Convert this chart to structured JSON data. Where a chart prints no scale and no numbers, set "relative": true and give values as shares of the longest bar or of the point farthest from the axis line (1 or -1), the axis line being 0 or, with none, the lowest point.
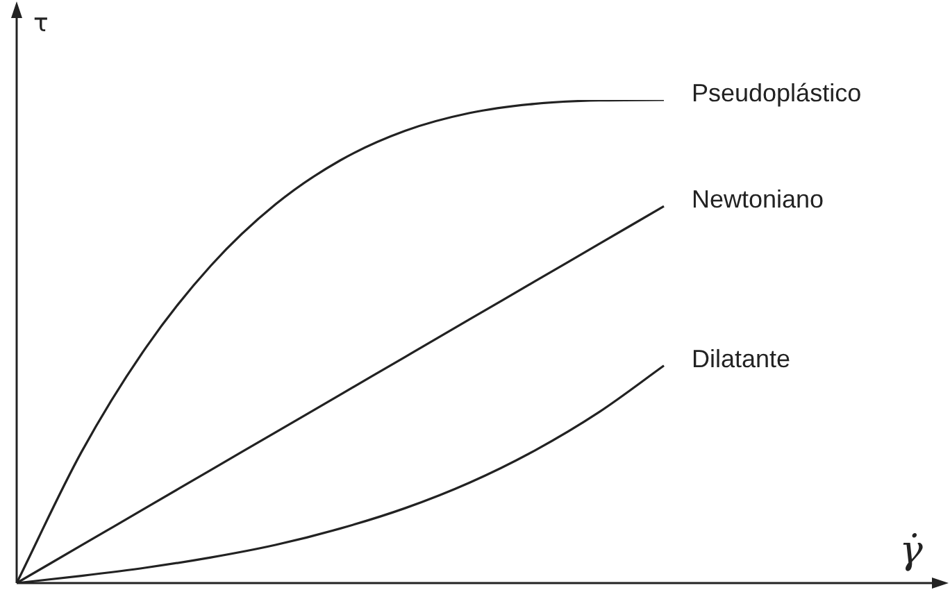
{
  "chart_data": {
    "type": "line",
    "relative": true,
    "ylabel": "τ",
    "annotations": [
      "γ̇"
    ],
    "categories": [
      null,
      null,
      null,
      null,
      null,
      null,
      null,
      null,
      null,
      null,
      null
    ],
    "marker": "none",
    "legend": false,
    "series": [
      {
        "name": "Pseudoplástico",
        "color": "#222222",
        "values": [
          0,
          0.271,
          0.488,
          0.657,
          0.784,
          0.875,
          0.936,
          0.973,
          0.992,
          0.999,
          1.0
        ]
      },
      {
        "name": "Newtoniano",
        "color": "#222222",
        "values": [
          0,
          0.078,
          0.156,
          0.234,
          0.312,
          0.39,
          0.468,
          0.546,
          0.624,
          0.702,
          0.78
        ]
      },
      {
        "name": "Dilatante",
        "color": "#222222",
        "values": [
          0,
          0.015,
          0.032,
          0.053,
          0.079,
          0.113,
          0.155,
          0.208,
          0.274,
          0.354,
          0.45
        ]
      }
    ]
  }
}
